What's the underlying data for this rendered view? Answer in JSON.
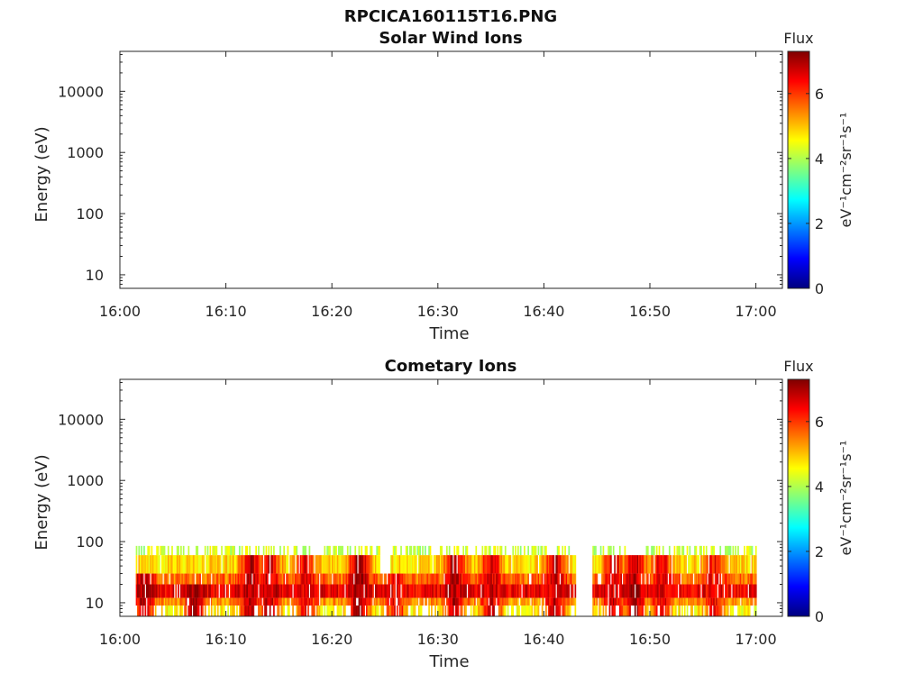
{
  "figure": {
    "title": "RPCICA160115T16.PNG"
  },
  "colormap": [
    "#00007f",
    "#0000ff",
    "#007fff",
    "#00ffff",
    "#7fff7f",
    "#ffff00",
    "#ff7f00",
    "#ff0000",
    "#7f0000"
  ],
  "chart_data": [
    {
      "type": "heatmap",
      "title": "Solar Wind Ions",
      "xlabel": "Time",
      "ylabel": "Energy (eV)",
      "x_ticks": [
        "16:00",
        "16:10",
        "16:20",
        "16:30",
        "16:40",
        "16:50",
        "17:00"
      ],
      "x_range_min": [
        0,
        62.5
      ],
      "y_scale": "log",
      "y_ticks": [
        "10",
        "100",
        "1000",
        "10000"
      ],
      "y_range": [
        6,
        45000
      ],
      "colorbar": {
        "title": "Flux",
        "unit_label": "eV⁻¹cm⁻²sr⁻¹s⁻¹",
        "ticks": [
          "0",
          "2",
          "4",
          "6"
        ],
        "range": [
          0,
          7.3
        ]
      },
      "grid": false,
      "data": []
    },
    {
      "type": "heatmap",
      "title": "Cometary Ions",
      "xlabel": "Time",
      "ylabel": "Energy (eV)",
      "x_ticks": [
        "16:00",
        "16:10",
        "16:20",
        "16:30",
        "16:40",
        "16:50",
        "17:00"
      ],
      "x_range_min": [
        0,
        62.5
      ],
      "y_scale": "log",
      "y_ticks": [
        "10",
        "100",
        "1000",
        "10000"
      ],
      "y_range": [
        6,
        45000
      ],
      "colorbar": {
        "title": "Flux",
        "unit_label": "eV⁻¹cm⁻²sr⁻¹s⁻¹",
        "ticks": [
          "0",
          "2",
          "4",
          "6"
        ],
        "range": [
          0,
          7.3
        ]
      },
      "grid": false,
      "data_time_range_min": [
        1.5,
        60
      ],
      "energy_bands_eV": [
        {
          "range": [
            60,
            85
          ],
          "flux": 4.2
        },
        {
          "range": [
            30,
            60
          ],
          "flux": 4.8
        },
        {
          "range": [
            20,
            30
          ],
          "flux": 5.6
        },
        {
          "range": [
            12,
            20
          ],
          "flux": 6.5
        },
        {
          "range": [
            9,
            12
          ],
          "flux": 5.3
        },
        {
          "range": [
            6,
            9
          ],
          "flux": 4.6
        }
      ],
      "flux_peaks": [
        {
          "t_min": 2.2,
          "energy_eV": 20,
          "flux": 7.0
        },
        {
          "t_min": 7.0,
          "energy_eV": 15,
          "flux": 7.1
        },
        {
          "t_min": 12.3,
          "energy_eV": 35,
          "flux": 6.9
        },
        {
          "t_min": 14.0,
          "energy_eV": 25,
          "flux": 6.8
        },
        {
          "t_min": 17.5,
          "energy_eV": 40,
          "flux": 6.6
        },
        {
          "t_min": 22.5,
          "energy_eV": 35,
          "flux": 7.2
        },
        {
          "t_min": 26.0,
          "energy_eV": 20,
          "flux": 6.5
        },
        {
          "t_min": 31.5,
          "energy_eV": 30,
          "flux": 6.9
        },
        {
          "t_min": 35.0,
          "energy_eV": 25,
          "flux": 6.7
        },
        {
          "t_min": 41.0,
          "energy_eV": 30,
          "flux": 6.8
        },
        {
          "t_min": 46.5,
          "energy_eV": 40,
          "flux": 6.7
        },
        {
          "t_min": 48.5,
          "energy_eV": 35,
          "flux": 6.9
        },
        {
          "t_min": 51.0,
          "energy_eV": 30,
          "flux": 6.6
        },
        {
          "t_min": 56.0,
          "energy_eV": 25,
          "flux": 6.4
        }
      ]
    }
  ]
}
